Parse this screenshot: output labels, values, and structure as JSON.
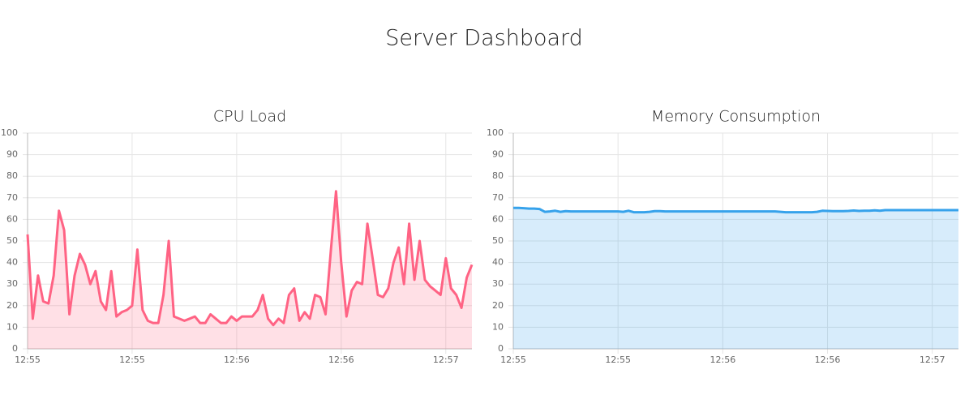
{
  "title": "Server Dashboard",
  "chart_data": [
    {
      "type": "line",
      "title": "CPU Load",
      "categories": [
        "12:55",
        null,
        null,
        null,
        null,
        null,
        null,
        null,
        null,
        null,
        null,
        null,
        null,
        null,
        null,
        null,
        null,
        null,
        null,
        null,
        "12:55",
        null,
        null,
        null,
        null,
        null,
        null,
        null,
        null,
        null,
        null,
        null,
        null,
        null,
        null,
        null,
        null,
        null,
        null,
        null,
        "12:56",
        null,
        null,
        null,
        null,
        null,
        null,
        null,
        null,
        null,
        null,
        null,
        null,
        null,
        null,
        null,
        null,
        null,
        null,
        null,
        "12:56",
        null,
        null,
        null,
        null,
        null,
        null,
        null,
        null,
        null,
        null,
        null,
        null,
        null,
        null,
        null,
        null,
        null,
        null,
        null,
        "12:57",
        null,
        null,
        null,
        null,
        null
      ],
      "values": [
        53,
        14,
        34,
        22,
        21,
        34,
        64,
        55,
        16,
        34,
        44,
        39,
        30,
        36,
        22,
        18,
        36,
        15,
        17,
        18,
        20,
        46,
        18,
        13,
        12,
        12,
        25,
        50,
        15,
        14,
        13,
        14,
        15,
        12,
        12,
        16,
        14,
        12,
        12,
        15,
        13,
        15,
        15,
        15,
        18,
        25,
        14,
        11,
        14,
        12,
        25,
        28,
        13,
        17,
        14,
        25,
        24,
        16,
        45,
        73,
        40,
        15,
        27,
        31,
        30,
        58,
        42,
        25,
        24,
        28,
        40,
        47,
        30,
        58,
        32,
        50,
        32,
        29,
        27,
        25,
        42,
        28,
        25,
        19,
        33,
        39
      ],
      "color": "#ff6384",
      "fill_color": "rgba(255,99,132,0.2)",
      "ylim": [
        0,
        100
      ],
      "yticks": [
        0,
        10,
        20,
        30,
        40,
        50,
        60,
        70,
        80,
        90,
        100
      ],
      "grid": true
    },
    {
      "type": "line",
      "title": "Memory Consumption",
      "categories": [
        "12:55",
        null,
        null,
        null,
        null,
        null,
        null,
        null,
        null,
        null,
        null,
        null,
        null,
        null,
        null,
        null,
        null,
        null,
        null,
        null,
        "12:55",
        null,
        null,
        null,
        null,
        null,
        null,
        null,
        null,
        null,
        null,
        null,
        null,
        null,
        null,
        null,
        null,
        null,
        null,
        null,
        "12:56",
        null,
        null,
        null,
        null,
        null,
        null,
        null,
        null,
        null,
        null,
        null,
        null,
        null,
        null,
        null,
        null,
        null,
        null,
        null,
        "12:56",
        null,
        null,
        null,
        null,
        null,
        null,
        null,
        null,
        null,
        null,
        null,
        null,
        null,
        null,
        null,
        null,
        null,
        null,
        null,
        "12:57",
        null,
        null,
        null,
        null,
        null
      ],
      "values": [
        65.3,
        65.3,
        65.2,
        65,
        65,
        64.8,
        63.5,
        63.7,
        64,
        63.5,
        63.8,
        63.7,
        63.7,
        63.7,
        63.7,
        63.7,
        63.7,
        63.7,
        63.7,
        63.7,
        63.7,
        63.5,
        64,
        63.3,
        63.3,
        63.3,
        63.5,
        63.8,
        63.8,
        63.7,
        63.7,
        63.7,
        63.7,
        63.7,
        63.7,
        63.7,
        63.7,
        63.7,
        63.7,
        63.7,
        63.7,
        63.7,
        63.7,
        63.7,
        63.7,
        63.7,
        63.7,
        63.7,
        63.7,
        63.7,
        63.7,
        63.5,
        63.3,
        63.3,
        63.3,
        63.3,
        63.3,
        63.3,
        63.5,
        64,
        63.9,
        63.8,
        63.8,
        63.8,
        63.9,
        64.1,
        63.9,
        64,
        64,
        64.2,
        64,
        64.3,
        64.3,
        64.3,
        64.3,
        64.3,
        64.3,
        64.3,
        64.3,
        64.3,
        64.3,
        64.3,
        64.3,
        64.3,
        64.3,
        64.3
      ],
      "color": "#36a2eb",
      "fill_color": "rgba(54,162,235,0.2)",
      "ylim": [
        0,
        100
      ],
      "yticks": [
        0,
        10,
        20,
        30,
        40,
        50,
        60,
        70,
        80,
        90,
        100
      ],
      "grid": true
    }
  ]
}
